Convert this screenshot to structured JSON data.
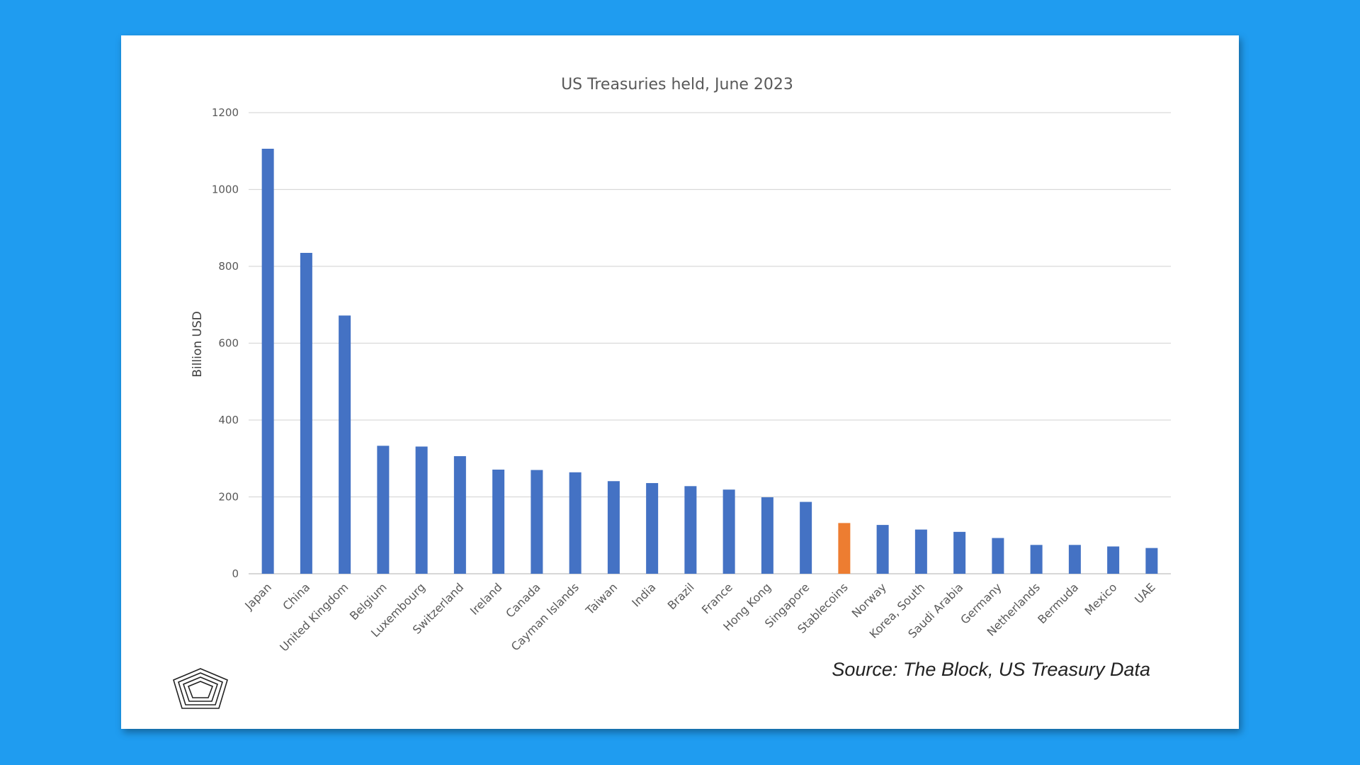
{
  "chart_data": {
    "type": "bar",
    "title": "US Treasuries held, June 2023",
    "ylabel": "Billion USD",
    "xlabel": "",
    "ylim": [
      0,
      1200
    ],
    "yticks": [
      0,
      200,
      400,
      600,
      800,
      1000,
      1200
    ],
    "grid": true,
    "categories": [
      "Japan",
      "China",
      "United Kingdom",
      "Belgium",
      "Luxembourg",
      "Switzerland",
      "Ireland",
      "Canada",
      "Cayman Islands",
      "Taiwan",
      "India",
      "Brazil",
      "France",
      "Hong Kong",
      "Singapore",
      "Stablecoins",
      "Norway",
      "Korea, South",
      "Saudi Arabia",
      "Germany",
      "Netherlands",
      "Bermuda",
      "Mexico",
      "UAE"
    ],
    "values": [
      1106,
      835,
      672,
      333,
      331,
      306,
      271,
      270,
      264,
      241,
      236,
      228,
      219,
      199,
      187,
      132,
      127,
      115,
      109,
      93,
      75,
      75,
      71,
      67
    ],
    "colors": {
      "default": "#4472c4",
      "highlight": "#ed7d31",
      "grid": "#d9d9d9",
      "axis": "#bfbfbf"
    },
    "highlight_category": "Stablecoins"
  },
  "source": "Source: The Block, US Treasury Data",
  "logo_icon": "pentagon-logo-icon"
}
